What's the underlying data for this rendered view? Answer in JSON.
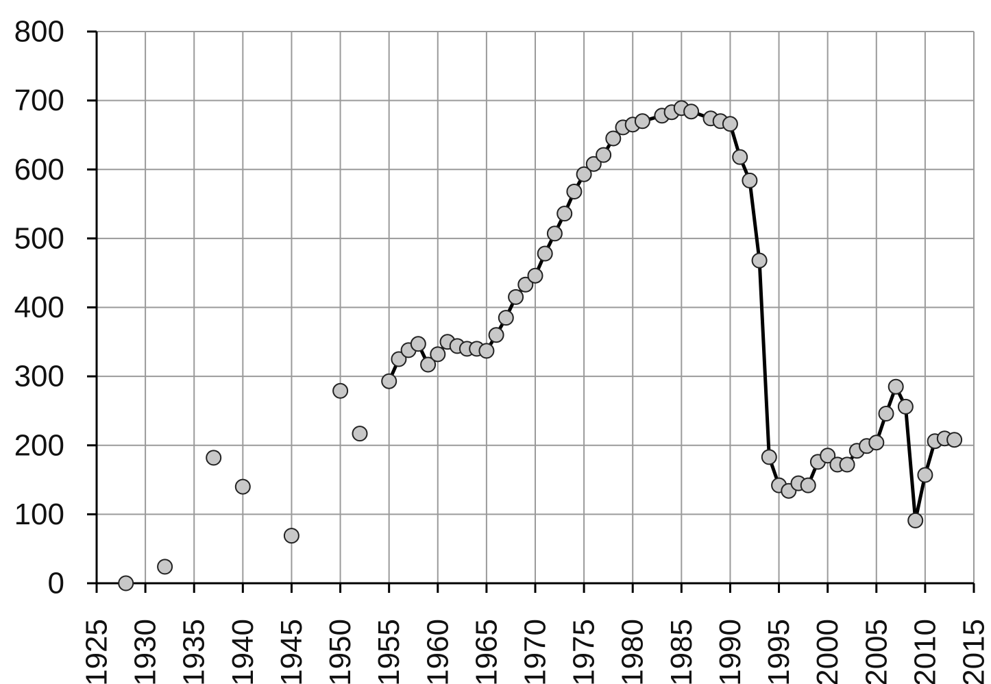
{
  "chart_data": {
    "type": "scatter",
    "title": "",
    "xlabel": "",
    "ylabel": "",
    "xlim": [
      1925,
      2015
    ],
    "ylim": [
      0,
      800
    ],
    "x_ticks": [
      "1925",
      "1930",
      "1935",
      "1940",
      "1945",
      "1950",
      "1955",
      "1960",
      "1965",
      "1970",
      "1975",
      "1980",
      "1985",
      "1990",
      "1995",
      "2000",
      "2005",
      "2010",
      "2015"
    ],
    "y_ticks": [
      "0",
      "100",
      "200",
      "300",
      "400",
      "500",
      "600",
      "700",
      "800"
    ],
    "grid": true,
    "legend": "none",
    "colors": {
      "marker_fill": "#c8c8c8",
      "marker_stroke": "#222222",
      "line": "#000000",
      "grid": "#9a9a9a",
      "axis": "#000000"
    },
    "series": [
      {
        "x": [
          1928,
          1932,
          1937,
          1940,
          1945,
          1950,
          1952,
          1955,
          1956,
          1957,
          1958,
          1959,
          1960,
          1961,
          1962,
          1963,
          1964,
          1965,
          1966,
          1967,
          1968,
          1969,
          1970,
          1971,
          1972,
          1973,
          1974,
          1975,
          1976,
          1977,
          1978,
          1979,
          1980,
          1981,
          1983,
          1984,
          1985,
          1986,
          1988,
          1989,
          1990,
          1991,
          1992,
          1993,
          1994,
          1995,
          1996,
          1997,
          1998,
          1999,
          2000,
          2001,
          2002,
          2003,
          2004,
          2005,
          2006,
          2007,
          2008,
          2009,
          2010,
          2011,
          2012,
          2013
        ],
        "y": [
          0,
          24,
          182,
          140,
          69,
          279,
          217,
          293,
          325,
          338,
          347,
          317,
          332,
          350,
          344,
          340,
          340,
          337,
          360,
          385,
          415,
          433,
          446,
          478,
          507,
          536,
          568,
          593,
          608,
          621,
          645,
          661,
          665,
          670,
          678,
          683,
          689,
          684,
          674,
          670,
          666,
          618,
          584,
          468,
          183,
          142,
          134,
          145,
          142,
          176,
          185,
          172,
          172,
          192,
          199,
          204,
          246,
          285,
          256,
          91,
          157,
          206,
          210,
          208
        ],
        "connected_from_x": 1955
      }
    ]
  }
}
